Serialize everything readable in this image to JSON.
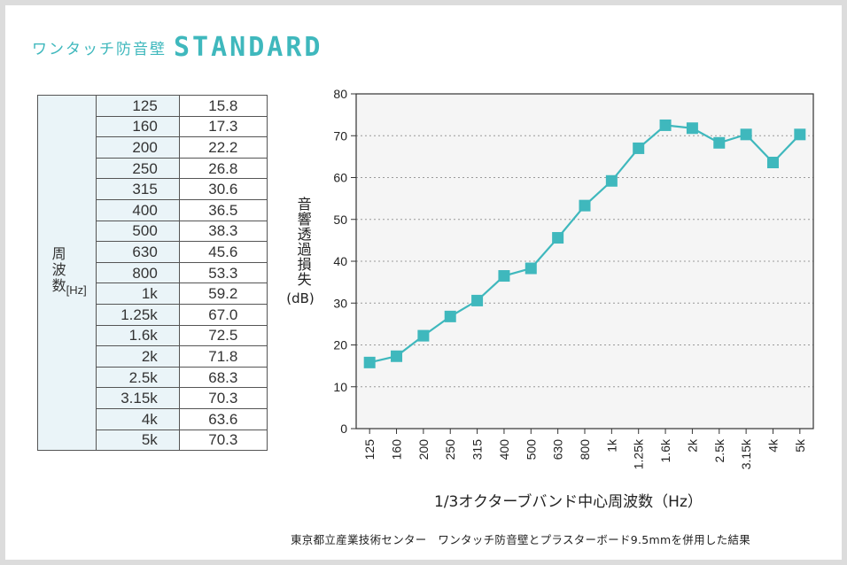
{
  "title": {
    "main": "ワンタッチ防音壁",
    "sub": "STANDARD"
  },
  "table": {
    "header": "周波数",
    "header_unit": "[Hz]",
    "rows": [
      {
        "freq": "125",
        "value": "15.8"
      },
      {
        "freq": "160",
        "value": "17.3"
      },
      {
        "freq": "200",
        "value": "22.2"
      },
      {
        "freq": "250",
        "value": "26.8"
      },
      {
        "freq": "315",
        "value": "30.6"
      },
      {
        "freq": "400",
        "value": "36.5"
      },
      {
        "freq": "500",
        "value": "38.3"
      },
      {
        "freq": "630",
        "value": "45.6"
      },
      {
        "freq": "800",
        "value": "53.3"
      },
      {
        "freq": "1k",
        "value": "59.2"
      },
      {
        "freq": "1.25k",
        "value": "67.0"
      },
      {
        "freq": "1.6k",
        "value": "72.5"
      },
      {
        "freq": "2k",
        "value": "71.8"
      },
      {
        "freq": "2.5k",
        "value": "68.3"
      },
      {
        "freq": "3.15k",
        "value": "70.3"
      },
      {
        "freq": "4k",
        "value": "63.6"
      },
      {
        "freq": "5k",
        "value": "70.3"
      }
    ]
  },
  "chart_data": {
    "type": "line",
    "categories": [
      "125",
      "160",
      "200",
      "250",
      "315",
      "400",
      "500",
      "630",
      "800",
      "1k",
      "1.25k",
      "1.6k",
      "2k",
      "2.5k",
      "3.15k",
      "4k",
      "5k"
    ],
    "series": [
      {
        "values": [
          15.8,
          17.3,
          22.2,
          26.8,
          30.6,
          36.5,
          38.3,
          45.6,
          53.3,
          59.2,
          67.0,
          72.5,
          71.8,
          68.3,
          70.3,
          63.6,
          70.3
        ]
      }
    ],
    "ylabel": "音響透過損失",
    "ylabel_unit": "(dB)",
    "xlabel": "1/3オクターブバンド中心周波数（Hz）",
    "ylim": [
      0,
      80
    ],
    "yticks": [
      0,
      10,
      20,
      30,
      40,
      50,
      60,
      70,
      80
    ],
    "grid": true,
    "marker": "square",
    "colors": {
      "line": "#3fb8bd",
      "marker": "#3fb8bd",
      "title": "#3fb8bd",
      "plot_bg": "#f5f5f5",
      "table_bg": "#eaf4f8"
    }
  },
  "footnote": "東京都立産業技術センター　ワンタッチ防音壁とプラスターボード9.5mmを併用した結果"
}
